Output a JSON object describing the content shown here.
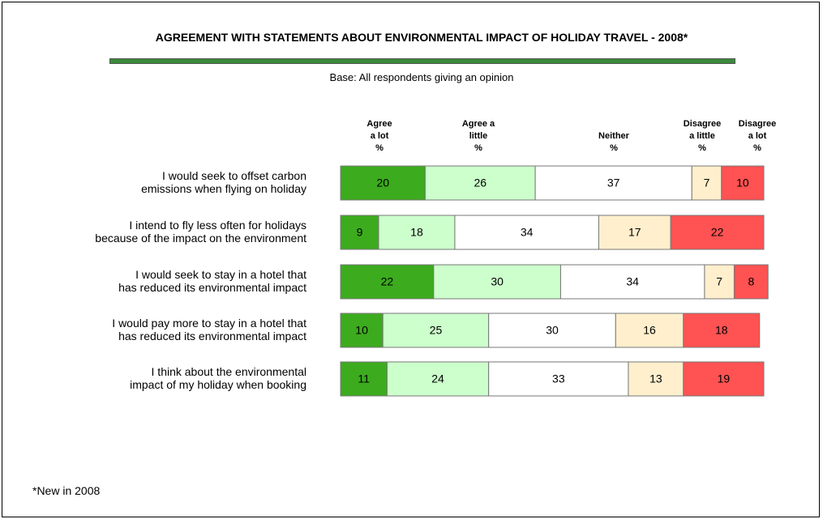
{
  "chart_data": {
    "type": "stacked-bar-horizontal",
    "title": "AGREEMENT WITH STATEMENTS ABOUT ENVIRONMENTAL IMPACT OF HOLIDAY TRAVEL - 2008*",
    "subtitle": "Base: All respondents giving an opinion",
    "footnote": "*New in 2008",
    "categories": [
      "I would seek to offset carbon\nemissions when flying on holiday",
      "I intend to fly less often for holidays\nbecause of the impact on the environment",
      "I would seek to stay in a hotel that\nhas reduced its environmental impact",
      "I would pay more to stay in a hotel that\nhas reduced its environmental impact",
      "I think about the environmental\nimpact of my holiday when booking"
    ],
    "series": [
      {
        "name": "Agree\na lot\n%",
        "color": "#3cab1e",
        "values": [
          20,
          9,
          22,
          10,
          11
        ]
      },
      {
        "name": "Agree a\nlittle\n%",
        "color": "#ccffcc",
        "values": [
          26,
          18,
          30,
          25,
          24
        ]
      },
      {
        "name": "Neither\n%",
        "color": "#ffffff",
        "values": [
          37,
          34,
          34,
          30,
          33
        ]
      },
      {
        "name": "Disagree\na little\n%",
        "color": "#ffefcc",
        "values": [
          7,
          17,
          7,
          16,
          13
        ]
      },
      {
        "name": "Disagree\na lot\n%",
        "color": "#ff5252",
        "values": [
          10,
          22,
          8,
          18,
          19
        ]
      }
    ]
  }
}
